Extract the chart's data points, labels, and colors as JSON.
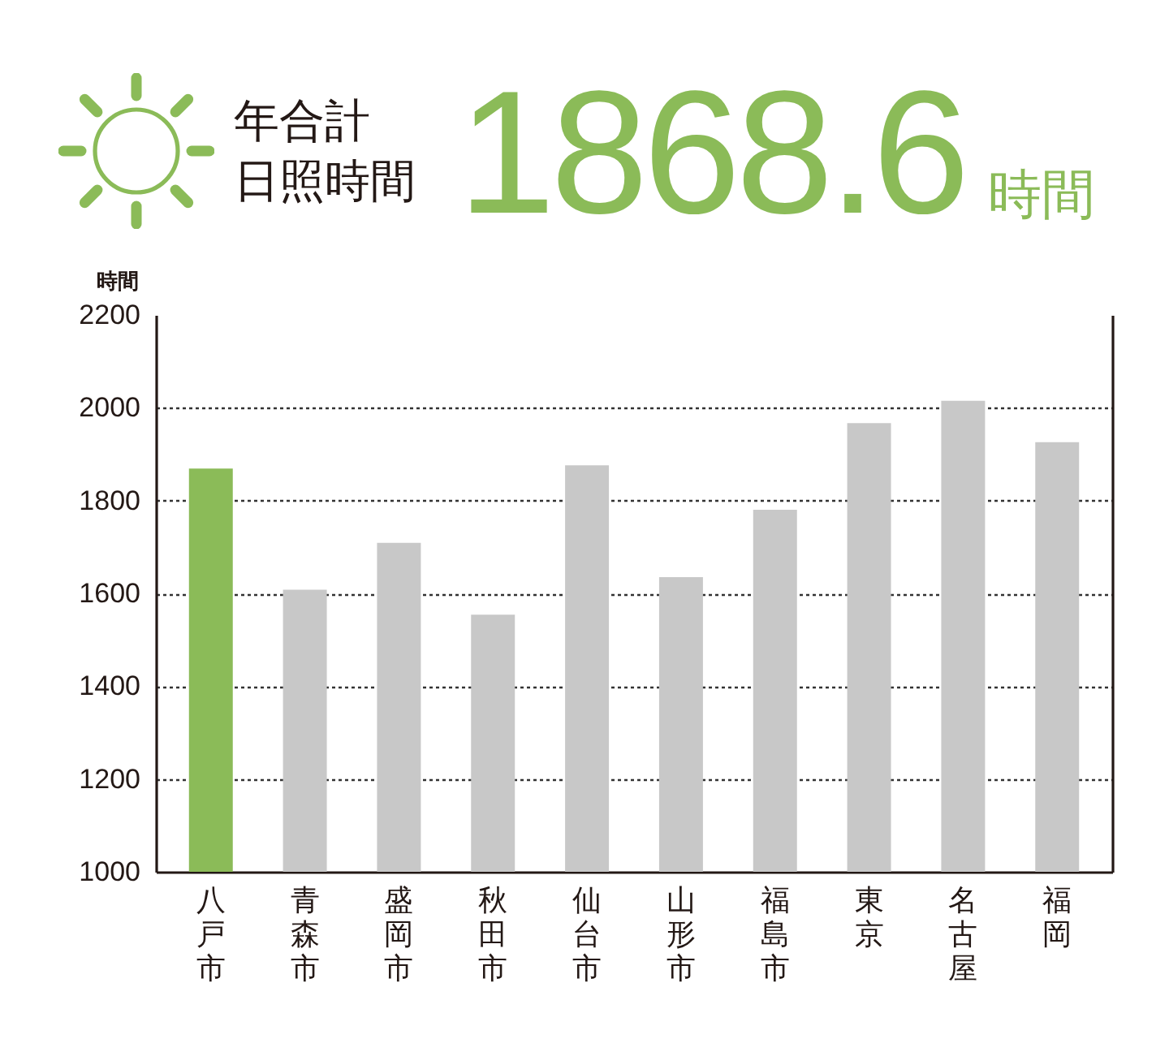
{
  "chart_data": {
    "type": "bar",
    "title": "年合計日照時間",
    "subtitle": "1868.6時間",
    "ylabel": "時間",
    "categories": [
      "八戸市",
      "青森市",
      "盛岡市",
      "秋田市",
      "仙台市",
      "山形市",
      "福島市",
      "東京",
      "名古屋",
      "福岡"
    ],
    "values": [
      1869,
      1608,
      1709,
      1554,
      1876,
      1635,
      1780,
      1967,
      2015,
      1926
    ],
    "colors": [
      "#8bbb58",
      "#c8c8c8",
      "#c8c8c8",
      "#c8c8c8",
      "#c8c8c8",
      "#c8c8c8",
      "#c8c8c8",
      "#c8c8c8",
      "#c8c8c8",
      "#c8c8c8"
    ],
    "ylim": [
      1000,
      2200
    ],
    "yticks": [
      1000,
      1200,
      1400,
      1600,
      1800,
      2000,
      2200
    ],
    "grid": "y"
  }
}
